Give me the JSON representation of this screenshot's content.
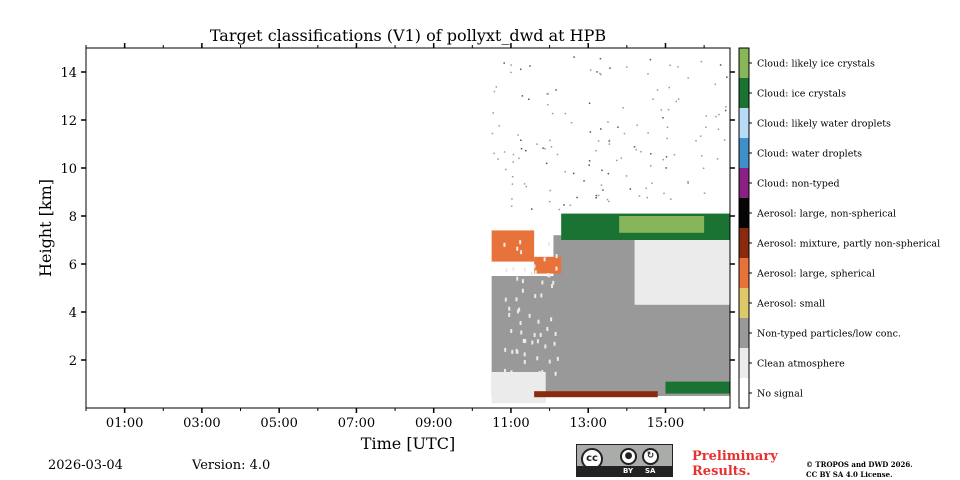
{
  "chart_data": {
    "type": "heatmap",
    "title": "Target classifications (V1) of pollyxt_dwd at HPB",
    "xlabel": "Time [UTC]",
    "ylabel": "Height [km]",
    "xlim": [
      0,
      16.67
    ],
    "ylim": [
      0,
      15
    ],
    "x_ticks": [
      {
        "value": 1,
        "label": "01:00"
      },
      {
        "value": 3,
        "label": "03:00"
      },
      {
        "value": 5,
        "label": "05:00"
      },
      {
        "value": 7,
        "label": "07:00"
      },
      {
        "value": 9,
        "label": "09:00"
      },
      {
        "value": 11,
        "label": "11:00"
      },
      {
        "value": 13,
        "label": "13:00"
      },
      {
        "value": 15,
        "label": "15:00"
      }
    ],
    "y_ticks": [
      {
        "value": 2,
        "label": "2"
      },
      {
        "value": 4,
        "label": "4"
      },
      {
        "value": 6,
        "label": "6"
      },
      {
        "value": 8,
        "label": "8"
      },
      {
        "value": 10,
        "label": "10"
      },
      {
        "value": 12,
        "label": "12"
      },
      {
        "value": 14,
        "label": "14"
      }
    ],
    "classes": [
      {
        "label": "No signal",
        "color": "#ffffff"
      },
      {
        "label": "Clean atmosphere",
        "color": "#ebebeb"
      },
      {
        "label": "Non-typed particles/low conc.",
        "color": "#999999"
      },
      {
        "label": "Aerosol: small",
        "color": "#dec86b"
      },
      {
        "label": "Aerosol: large, spherical",
        "color": "#e8733a"
      },
      {
        "label": "Aerosol: mixture, partly non-spherical",
        "color": "#8b2a0e"
      },
      {
        "label": "Aerosol: large, non-spherical",
        "color": "#050505"
      },
      {
        "label": "Cloud: non-typed",
        "color": "#8a1f84"
      },
      {
        "label": "Cloud: water droplets",
        "color": "#3f8fcb"
      },
      {
        "label": "Cloud: likely water droplets",
        "color": "#b8dcf5"
      },
      {
        "label": "Cloud: ice crystals",
        "color": "#1a7233"
      },
      {
        "label": "Cloud: likely ice crystals",
        "color": "#86b55a"
      }
    ],
    "regions": [
      {
        "class": "Non-typed particles/low conc.",
        "t_start": 10.5,
        "t_end": 16.67,
        "h_bottom": 0.5,
        "h_top": 5.5
      },
      {
        "class": "Non-typed particles/low conc.",
        "t_start": 12.1,
        "t_end": 16.67,
        "h_bottom": 5.5,
        "h_top": 7.2
      },
      {
        "class": "Clean atmosphere",
        "t_start": 14.2,
        "t_end": 16.67,
        "h_bottom": 4.3,
        "h_top": 7.4
      },
      {
        "class": "Clean atmosphere",
        "t_start": 10.5,
        "t_end": 11.9,
        "h_bottom": 0.2,
        "h_top": 1.5
      },
      {
        "class": "Aerosol: large, spherical",
        "t_start": 10.5,
        "t_end": 11.6,
        "h_bottom": 6.1,
        "h_top": 7.4
      },
      {
        "class": "Aerosol: large, spherical",
        "t_start": 11.6,
        "t_end": 12.3,
        "h_bottom": 5.6,
        "h_top": 6.3
      },
      {
        "class": "Cloud: ice crystals",
        "t_start": 12.3,
        "t_end": 16.67,
        "h_bottom": 7.0,
        "h_top": 8.1
      },
      {
        "class": "Cloud: likely ice crystals",
        "t_start": 13.8,
        "t_end": 16.0,
        "h_bottom": 7.3,
        "h_top": 8.0
      },
      {
        "class": "Cloud: ice crystals",
        "t_start": 15.0,
        "t_end": 16.67,
        "h_bottom": 0.6,
        "h_top": 1.1
      },
      {
        "class": "Aerosol: mixture, partly non-spherical",
        "t_start": 11.6,
        "t_end": 14.8,
        "h_bottom": 0.45,
        "h_top": 0.7
      }
    ]
  },
  "footer": {
    "date": "2026-03-04",
    "version": "Version: 4.0",
    "preliminary": [
      "Preliminary",
      "Results."
    ],
    "copyright": [
      "© TROPOS and DWD 2026.",
      "CC BY SA 4.0 License."
    ],
    "license_badge": {
      "by": "BY",
      "sa": "SA",
      "cc": "cc"
    }
  }
}
